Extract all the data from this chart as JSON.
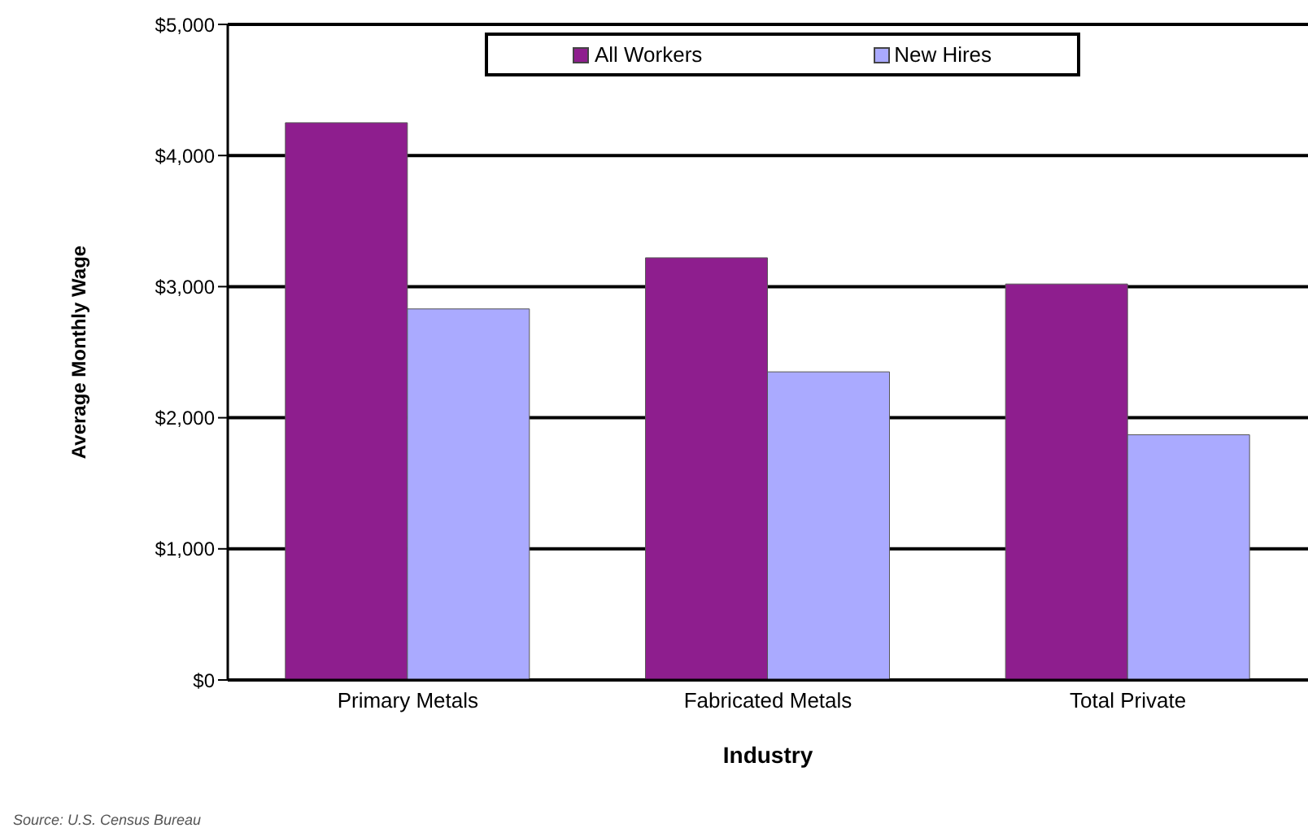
{
  "chart_data": {
    "type": "bar",
    "xlabel": "Industry",
    "ylabel": "Average Monthly Wage",
    "categories": [
      "Primary Metals",
      "Fabricated Metals",
      "Total Private"
    ],
    "series": [
      {
        "name": "All Workers",
        "color": "#8e1e8e",
        "values": [
          4250,
          3220,
          3020
        ]
      },
      {
        "name": "New Hires",
        "color": "#aaaaff",
        "values": [
          2830,
          2350,
          1870
        ]
      }
    ],
    "ylim": [
      0,
      5000
    ],
    "yticks": [
      {
        "value": 0,
        "label": "$0"
      },
      {
        "value": 1000,
        "label": "$1,000"
      },
      {
        "value": 2000,
        "label": "$2,000"
      },
      {
        "value": 3000,
        "label": "$3,000"
      },
      {
        "value": 4000,
        "label": "$4,000"
      },
      {
        "value": 5000,
        "label": "$5,000"
      }
    ],
    "grid": "y",
    "legend": "top",
    "annotations": [
      "Source: U.S. Census Bureau"
    ]
  }
}
